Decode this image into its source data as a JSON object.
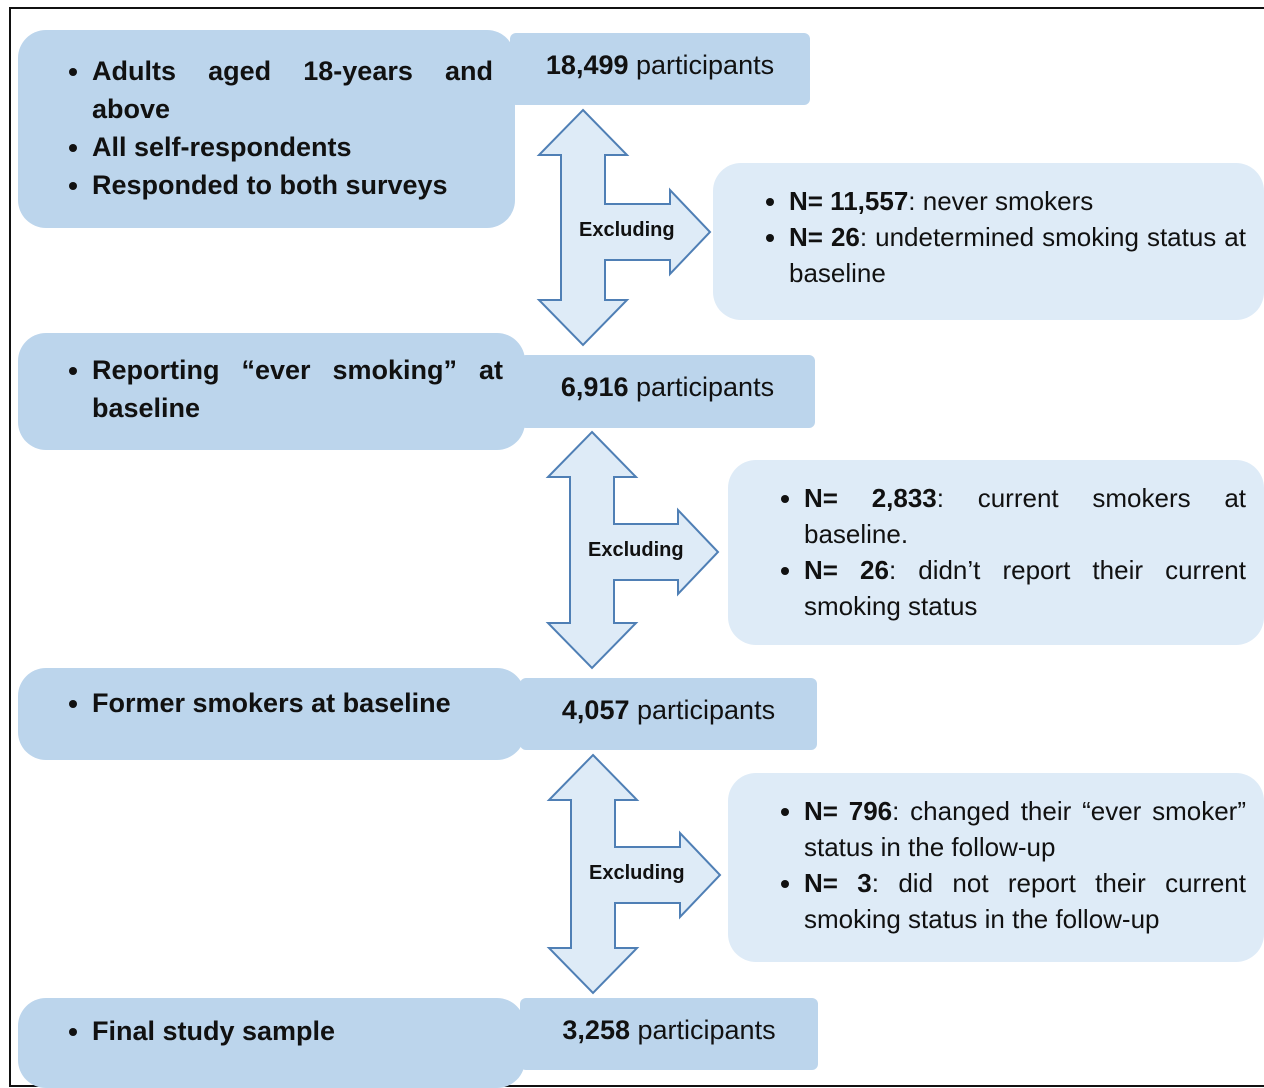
{
  "stages": [
    {
      "criteria": [
        "Adults aged 18-years and above",
        "All self-respondents",
        "Responded to both surveys"
      ],
      "count": {
        "number": "18,499",
        "unit": "participants"
      }
    },
    {
      "criteria": [
        "Reporting “ever smoking” at baseline"
      ],
      "count": {
        "number": "6,916",
        "unit": "participants"
      }
    },
    {
      "criteria": [
        "Former smokers at baseline"
      ],
      "count": {
        "number": "4,057",
        "unit": "participants"
      }
    },
    {
      "criteria": [
        "Final study sample"
      ],
      "count": {
        "number": "3,258",
        "unit": "participants"
      }
    }
  ],
  "exclusions": [
    {
      "label": "Excluding",
      "items": [
        {
          "n": "N= 11,557",
          "text": ": never smokers"
        },
        {
          "n": "N= 26",
          "text": ": undetermined smoking status at baseline"
        }
      ]
    },
    {
      "label": "Excluding",
      "items": [
        {
          "n": "N= 2,833",
          "text": ": current smokers at baseline."
        },
        {
          "n": "N= 26",
          "text": ": didn’t report their current smoking status"
        }
      ]
    },
    {
      "label": "Excluding",
      "items": [
        {
          "n": "N= 796",
          "text": ": changed their “ever smoker” status in the follow-up"
        },
        {
          "n": "N= 3",
          "text": ": did not report their current smoking status in the follow-up"
        }
      ]
    }
  ]
}
